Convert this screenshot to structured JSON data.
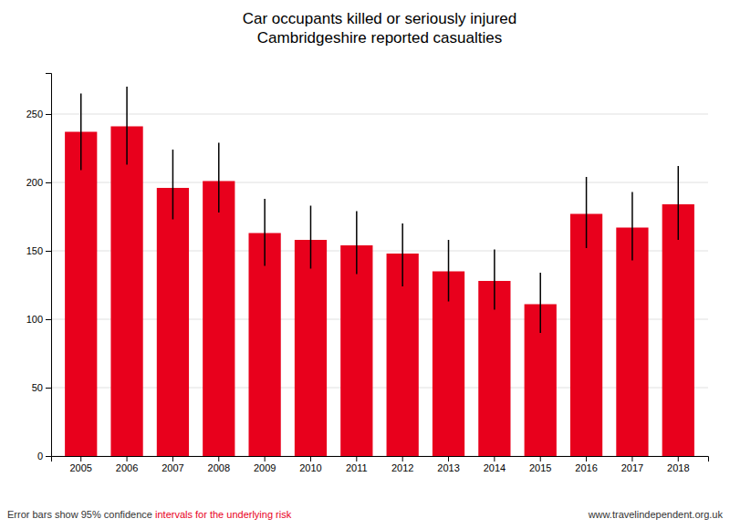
{
  "chart_data": {
    "type": "bar",
    "title": "Car occupants killed or seriously injured\nCambridgeshire reported casualties",
    "categories": [
      "2005",
      "2006",
      "2007",
      "2008",
      "2009",
      "2010",
      "2011",
      "2012",
      "2013",
      "2014",
      "2015",
      "2016",
      "2017",
      "2018"
    ],
    "values": [
      237,
      241,
      196,
      201,
      163,
      158,
      154,
      148,
      135,
      128,
      111,
      177,
      167,
      184
    ],
    "errors_lower": [
      28,
      28,
      23,
      23,
      24,
      21,
      21,
      24,
      22,
      21,
      21,
      25,
      24,
      26
    ],
    "errors_upper": [
      28,
      29,
      28,
      28,
      25,
      25,
      25,
      22,
      23,
      23,
      23,
      27,
      26,
      28
    ],
    "color": "#e8001c",
    "ylim": [
      0,
      280
    ],
    "yticks": [
      0,
      50,
      100,
      150,
      200,
      250
    ],
    "grid": true,
    "annotations": [
      {
        "text": "Error bars show 95% confidence ",
        "color": "#333333"
      },
      {
        "text": "intervals for the underlying risk",
        "color": "#e8001c"
      },
      {
        "text": "www.travelindependent.org.uk",
        "color": "#333333"
      }
    ]
  }
}
